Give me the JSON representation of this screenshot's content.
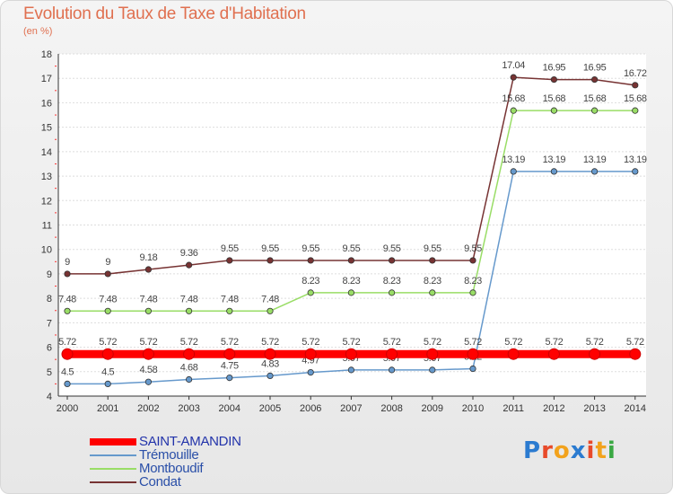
{
  "title": "Evolution du Taux de Taxe d'Habitation",
  "unit_label": "(en %)",
  "brand": {
    "text": "Proxiti",
    "letter_colors": [
      "#2b7bd0",
      "#e84a2a",
      "#f2a21c",
      "#2b7bd0",
      "#e84a2a",
      "#f2a21c",
      "#3aa843"
    ]
  },
  "chart_data": {
    "type": "line",
    "title": "Evolution du Taux de Taxe d'Habitation",
    "ylabel": "(en %)",
    "xlabel": "",
    "x": [
      "2000",
      "2001",
      "2002",
      "2003",
      "2004",
      "2005",
      "2006",
      "2007",
      "2008",
      "2009",
      "2010",
      "2011",
      "2012",
      "2013",
      "2014"
    ],
    "ylim": [
      4,
      18
    ],
    "yticks": [
      "4",
      "5",
      "6",
      "7",
      "8",
      "9",
      "10",
      "11",
      "12",
      "13",
      "14",
      "15",
      "16",
      "17",
      "18"
    ],
    "grid": "horizontal",
    "legend_position": "bottom-left",
    "series": [
      {
        "name": "SAINT-AMANDIN",
        "color": "#ff0000",
        "values": [
          5.72,
          5.72,
          5.72,
          5.72,
          5.72,
          5.72,
          5.72,
          5.72,
          5.72,
          5.72,
          5.72,
          5.72,
          5.72,
          5.72,
          5.72
        ],
        "labels": [
          "5.72",
          "5.72",
          "5.72",
          "5.72",
          "5.72",
          "5.72",
          "5.72",
          "5.72",
          "5.72",
          "5.72",
          "5.72",
          "5.72",
          "5.72",
          "5.72",
          "5.72"
        ]
      },
      {
        "name": "Trémouille",
        "color": "#6699cc",
        "values": [
          4.5,
          4.5,
          4.58,
          4.68,
          4.75,
          4.83,
          4.97,
          5.07,
          5.07,
          5.07,
          5.12,
          13.19,
          13.19,
          13.19,
          13.19
        ],
        "labels": [
          "4.5",
          "4.5",
          "4.58",
          "4.68",
          "4.75",
          "4.83",
          "4.97",
          "5.07",
          "5.07",
          "5.07",
          "5.12",
          "13.19",
          "13.19",
          "13.19",
          "13.19"
        ]
      },
      {
        "name": "Montboudif",
        "color": "#99dd66",
        "values": [
          7.48,
          7.48,
          7.48,
          7.48,
          7.48,
          7.48,
          8.23,
          8.23,
          8.23,
          8.23,
          8.23,
          15.68,
          15.68,
          15.68,
          15.68
        ],
        "labels": [
          "7.48",
          "7.48",
          "7.48",
          "7.48",
          "7.48",
          "7.48",
          "8.23",
          "8.23",
          "8.23",
          "8.23",
          "8.23",
          "15.68",
          "15.68",
          "15.68",
          "15.68"
        ]
      },
      {
        "name": "Condat",
        "color": "#773333",
        "values": [
          9,
          9,
          9.18,
          9.36,
          9.55,
          9.55,
          9.55,
          9.55,
          9.55,
          9.55,
          9.55,
          17.04,
          16.95,
          16.95,
          16.72
        ],
        "labels": [
          "9",
          "9",
          "9.18",
          "9.36",
          "9.55",
          "9.55",
          "9.55",
          "9.55",
          "9.55",
          "9.55",
          "9.55",
          "17.04",
          "16.95",
          "16.95",
          "16.72"
        ]
      }
    ]
  }
}
